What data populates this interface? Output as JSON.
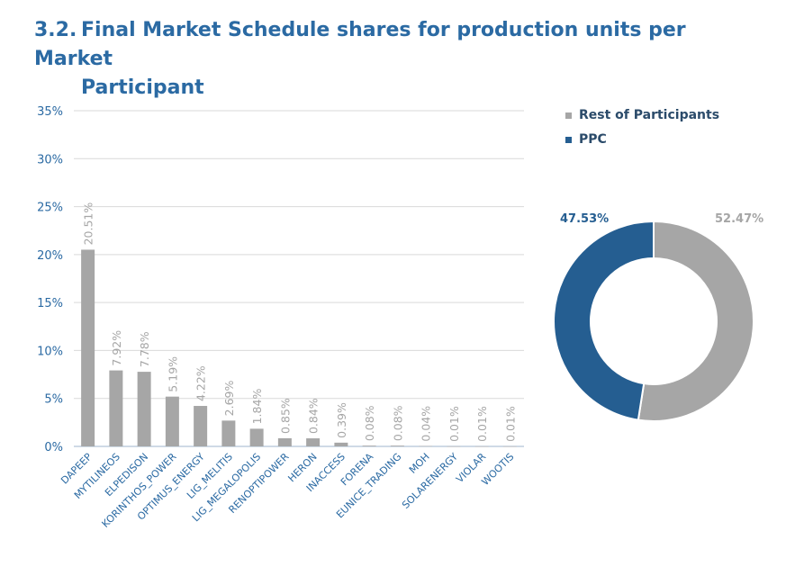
{
  "heading": {
    "number": "3.2.",
    "line1": "Final Market Schedule shares for production units per Market",
    "line2": "Participant"
  },
  "colors": {
    "heading": "#2b6aa3",
    "bar": "#a6a6a6",
    "bar_label": "#a6a6a6",
    "axis_text": "#2b6aa3",
    "grid": "#d9d9d9",
    "ppc": "#255e91",
    "rest": "#a6a6a6"
  },
  "chart_data": [
    {
      "type": "bar",
      "categories": [
        "DAPEEP",
        "MYTILINEOS",
        "ELPEDISON",
        "KORINTHOS_POWER",
        "OPTIMUS_ENERGY",
        "LIG_MELITIS",
        "LIG_MEGALOPOLIS",
        "RENOPTIPOWER",
        "HERON",
        "INACCESS",
        "FORENA",
        "EUNICE_TRADING",
        "MOH",
        "SOLARENERGY",
        "VIOLAR",
        "WOOTIS"
      ],
      "values": [
        20.51,
        7.92,
        7.78,
        5.19,
        4.22,
        2.69,
        1.84,
        0.85,
        0.84,
        0.39,
        0.08,
        0.08,
        0.04,
        0.01,
        0.01,
        0.01
      ],
      "data_labels": [
        "20.51%",
        "7.92%",
        "7.78%",
        "5.19%",
        "4.22%",
        "2.69%",
        "1.84%",
        "0.85%",
        "0.84%",
        "0.39%",
        "0.08%",
        "0.08%",
        "0.04%",
        "0.01%",
        "0.01%",
        "0.01%"
      ],
      "yticks": [
        0,
        5,
        10,
        15,
        20,
        25,
        30,
        35
      ],
      "ytick_labels": [
        "0%",
        "5%",
        "10%",
        "15%",
        "20%",
        "25%",
        "30%",
        "35%"
      ],
      "ylim": [
        0,
        35
      ],
      "grid": true
    },
    {
      "type": "pie",
      "style": "donut",
      "labels": [
        "Rest of Participants",
        "PPC"
      ],
      "values": [
        52.47,
        47.53
      ],
      "data_labels": [
        "52.47%",
        "47.53%"
      ],
      "legend_position": "top-right"
    }
  ]
}
